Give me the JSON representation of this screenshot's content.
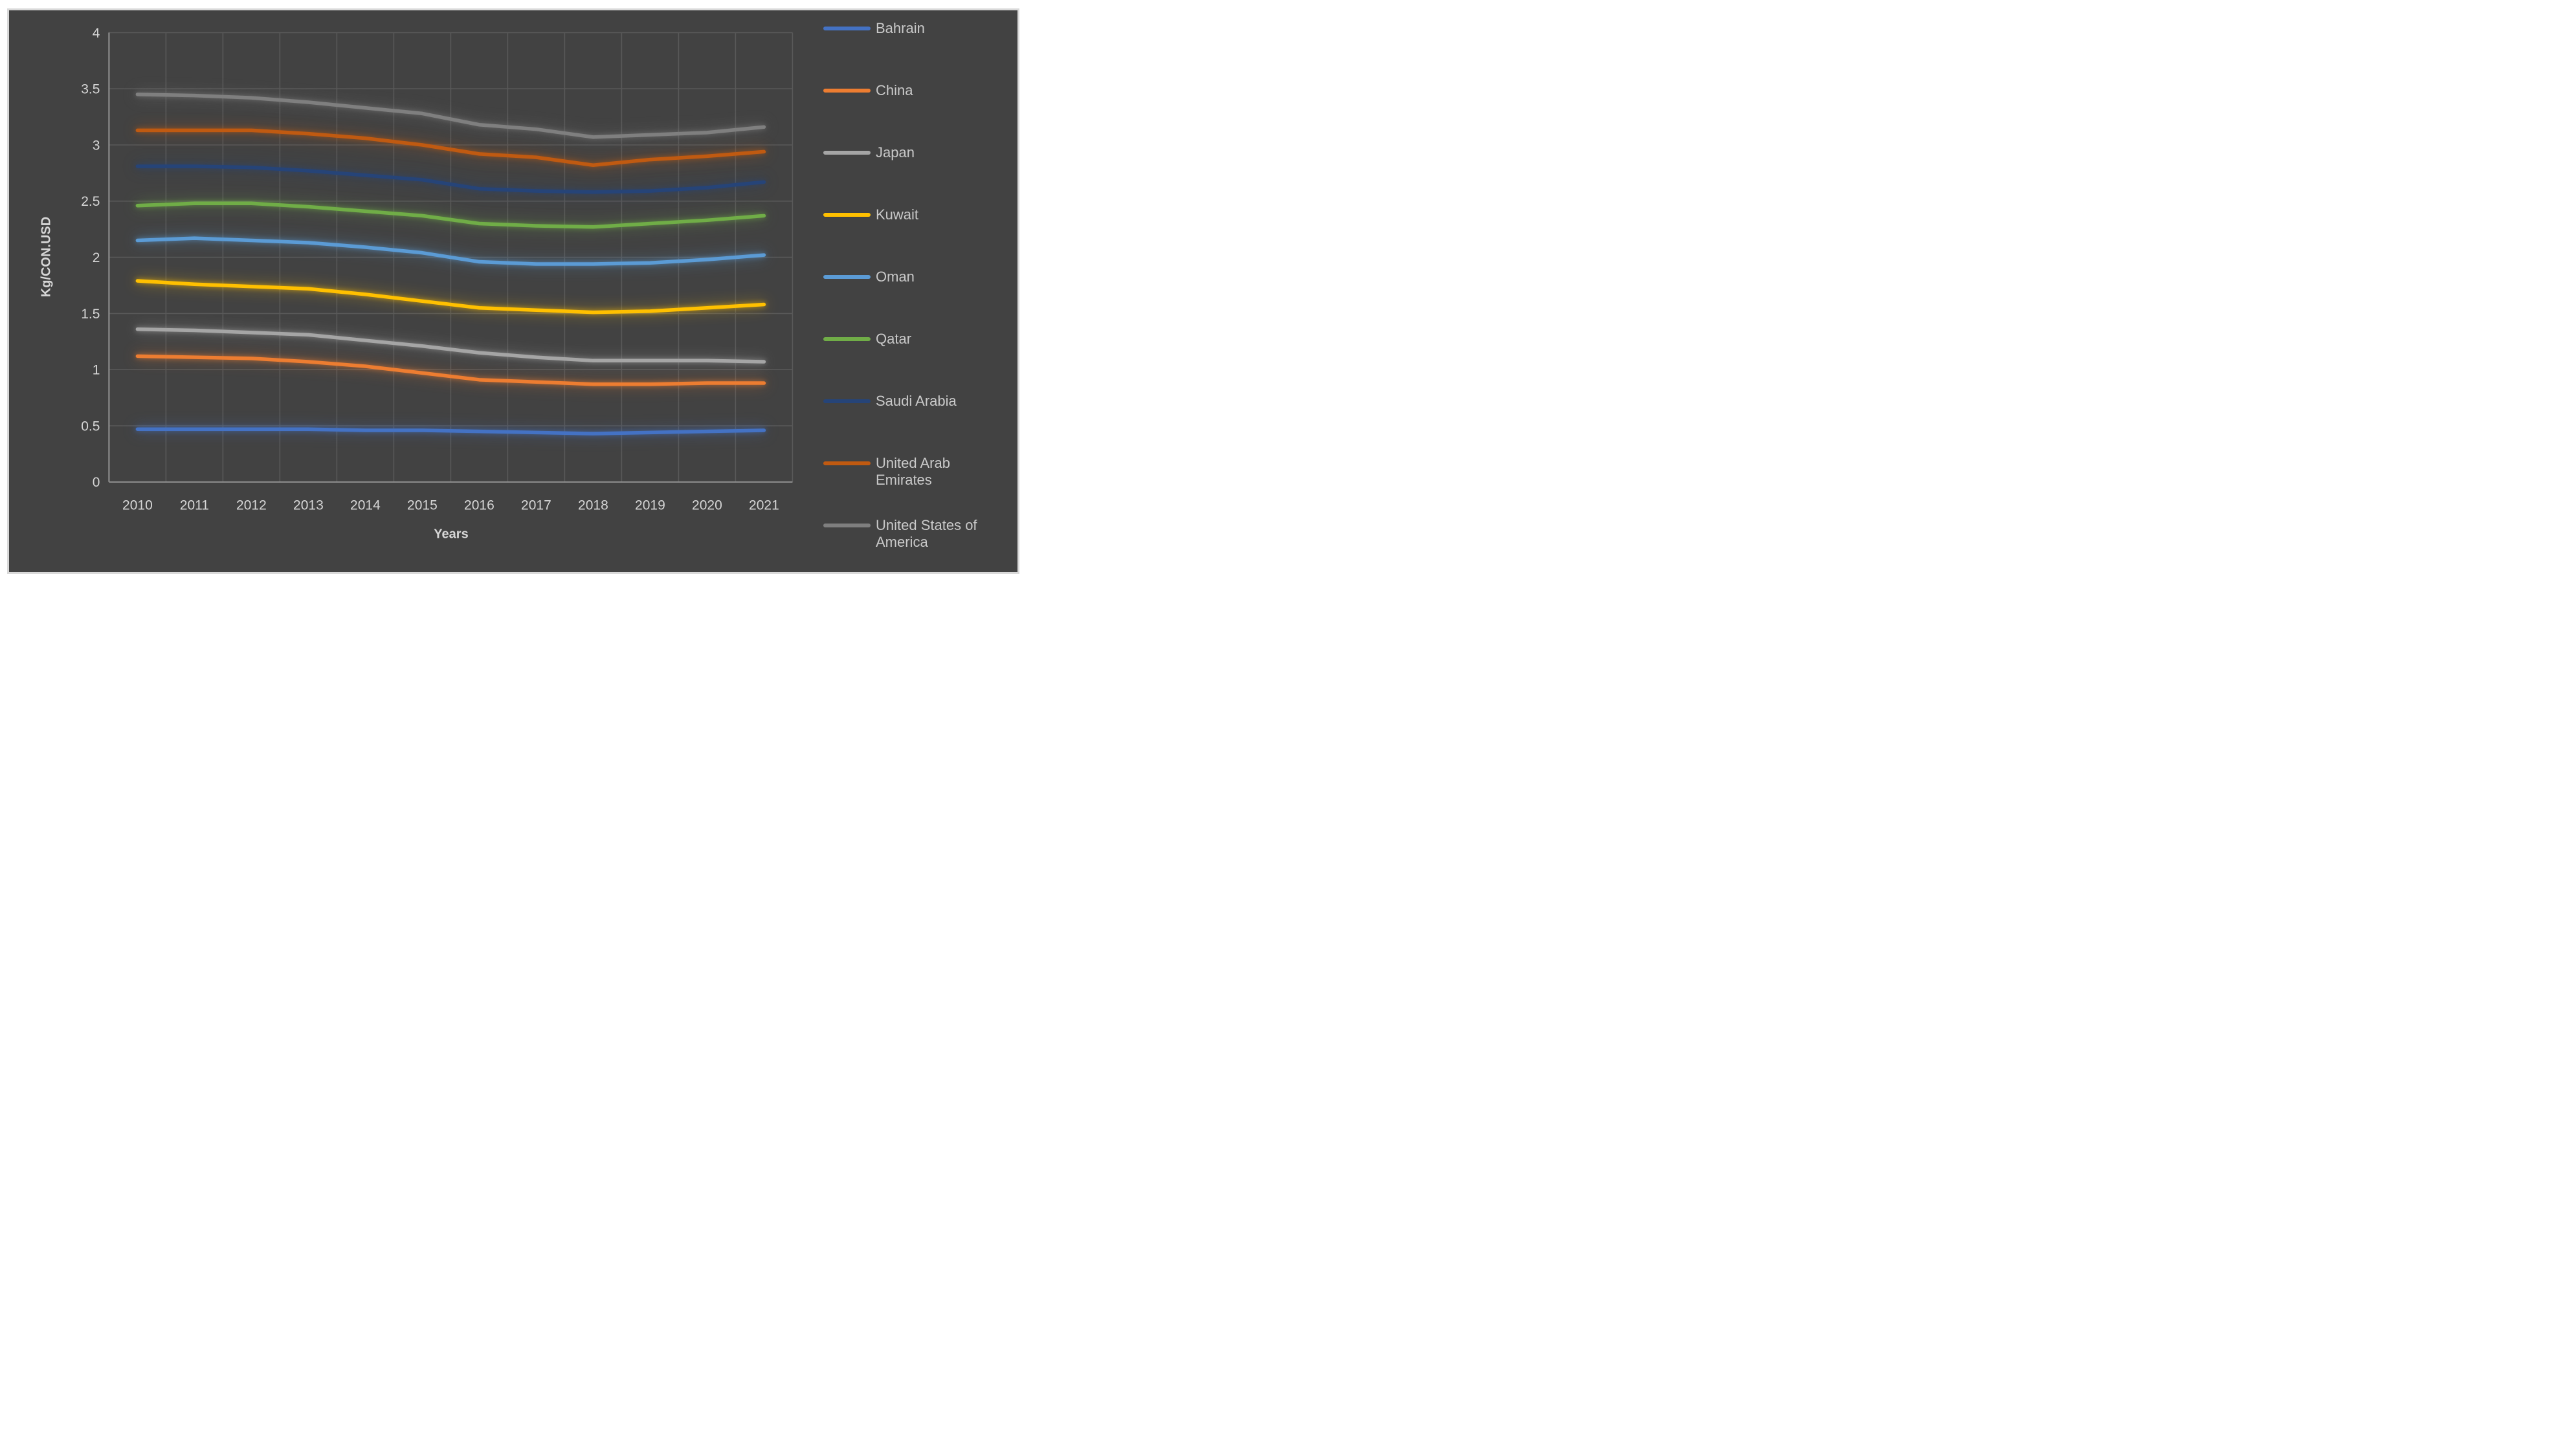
{
  "chart_data": {
    "type": "line",
    "x_categories": [
      "2010",
      "2011",
      "2012",
      "2013",
      "2014",
      "2015",
      "2016",
      "2017",
      "2018",
      "2019",
      "2020",
      "2021"
    ],
    "xlabel": "Years",
    "ylabel": "Kg/CON.USD",
    "ylim": [
      0,
      4
    ],
    "ytick_step": 0.5,
    "ytick_labels": [
      "4",
      "3.5",
      "3",
      "2.5",
      "2",
      "1.5",
      "1",
      "0.5",
      "0"
    ],
    "grid": "both",
    "legend_position": "right",
    "series": [
      {
        "name": "Bahrain",
        "color": "#4472C4",
        "values": [
          0.47,
          0.47,
          0.47,
          0.47,
          0.46,
          0.46,
          0.45,
          0.44,
          0.43,
          0.44,
          0.45,
          0.46
        ]
      },
      {
        "name": "China",
        "color": "#ED7D31",
        "values": [
          1.12,
          1.11,
          1.1,
          1.07,
          1.03,
          0.97,
          0.91,
          0.89,
          0.87,
          0.87,
          0.88,
          0.88
        ]
      },
      {
        "name": "Japan",
        "color": "#A5A5A5",
        "values": [
          1.36,
          1.35,
          1.33,
          1.31,
          1.26,
          1.21,
          1.15,
          1.11,
          1.08,
          1.08,
          1.08,
          1.07
        ]
      },
      {
        "name": "Kuwait",
        "color": "#FFC000",
        "values": [
          1.79,
          1.76,
          1.74,
          1.72,
          1.67,
          1.61,
          1.55,
          1.53,
          1.51,
          1.52,
          1.55,
          1.58
        ]
      },
      {
        "name": "Oman",
        "color": "#5B9BD5",
        "values": [
          2.15,
          2.17,
          2.15,
          2.13,
          2.09,
          2.04,
          1.96,
          1.94,
          1.94,
          1.95,
          1.98,
          2.02
        ]
      },
      {
        "name": "Qatar",
        "color": "#70AD47",
        "values": [
          2.46,
          2.48,
          2.48,
          2.45,
          2.41,
          2.37,
          2.3,
          2.28,
          2.27,
          2.3,
          2.33,
          2.37
        ]
      },
      {
        "name": "Saudi Arabia",
        "color": "#264478",
        "values": [
          2.81,
          2.81,
          2.8,
          2.77,
          2.73,
          2.69,
          2.61,
          2.59,
          2.58,
          2.59,
          2.62,
          2.67
        ]
      },
      {
        "name": "United Arab Emirates",
        "color": "#C05A11",
        "values": [
          3.13,
          3.13,
          3.13,
          3.1,
          3.06,
          3.0,
          2.92,
          2.89,
          2.82,
          2.87,
          2.9,
          2.94
        ]
      },
      {
        "name": "United States of America",
        "color": "#7F7F7F",
        "values": [
          3.45,
          3.44,
          3.42,
          3.38,
          3.33,
          3.28,
          3.18,
          3.14,
          3.07,
          3.09,
          3.11,
          3.16
        ]
      }
    ]
  },
  "ui_colors": {
    "page_background": "#FFFFFF",
    "chart_background": "#424242",
    "frame_border": "#D9D9D9",
    "gridline": "#595959",
    "axis_line": "#8C8C8C",
    "tick_text": "#D6D6D6",
    "legend_text": "#C9C9C9"
  }
}
